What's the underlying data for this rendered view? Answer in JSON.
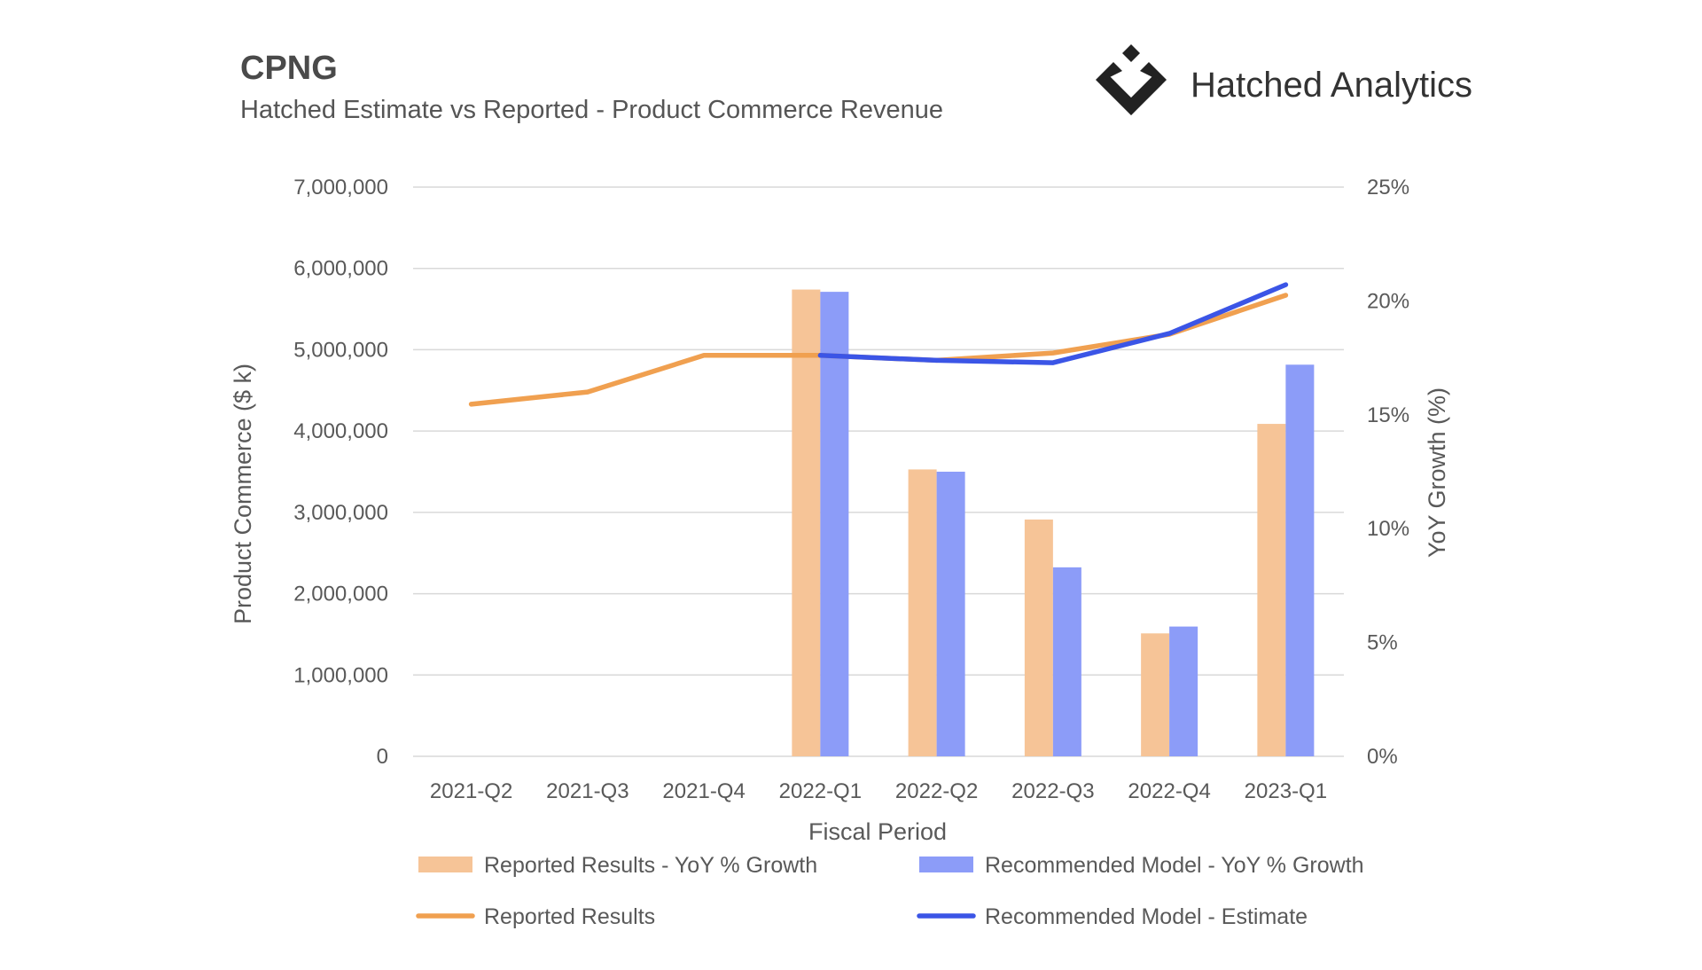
{
  "header": {
    "title": "CPNG",
    "subtitle": "Hatched Estimate vs Reported - Product Commerce Revenue"
  },
  "brand": {
    "name": "Hatched Analytics",
    "logo_icon": "hatched-diamond-logo"
  },
  "chart_data": {
    "type": "bar",
    "categories": [
      "2021-Q2",
      "2021-Q3",
      "2021-Q4",
      "2022-Q1",
      "2022-Q2",
      "2022-Q3",
      "2022-Q4",
      "2023-Q1"
    ],
    "xlabel": "Fiscal Period",
    "ylabel": "Product Commerce ($ k)",
    "y2label": "YoY Growth (%)",
    "ylim": [
      0,
      7000000
    ],
    "y2lim": [
      0,
      25
    ],
    "yticks": [
      "0",
      "1,000,000",
      "2,000,000",
      "3,000,000",
      "4,000,000",
      "5,000,000",
      "6,000,000",
      "7,000,000"
    ],
    "y2ticks": [
      "0%",
      "5%",
      "10%",
      "15%",
      "20%",
      "25%"
    ],
    "grid": true,
    "legend_position": "bottom",
    "series": [
      {
        "name": "Reported Results - YoY % Growth",
        "kind": "bar",
        "axis": "right",
        "color": "#F6C497",
        "values": [
          null,
          null,
          null,
          20.5,
          12.6,
          10.4,
          5.4,
          14.6
        ]
      },
      {
        "name": "Recommended Model - YoY % Growth",
        "kind": "bar",
        "axis": "right",
        "color": "#8C9CF8",
        "values": [
          null,
          null,
          null,
          20.4,
          12.5,
          8.3,
          5.7,
          17.2
        ]
      },
      {
        "name": "Reported Results",
        "kind": "line",
        "axis": "left",
        "color": "#F0A050",
        "values": [
          4330000,
          4480000,
          4930000,
          4930000,
          4870000,
          4960000,
          5190000,
          5670000
        ]
      },
      {
        "name": "Recommended Model - Estimate",
        "kind": "line",
        "axis": "left",
        "color": "#3B55E6",
        "values": [
          null,
          null,
          null,
          4930000,
          4870000,
          4840000,
          5200000,
          5800000
        ]
      }
    ]
  }
}
